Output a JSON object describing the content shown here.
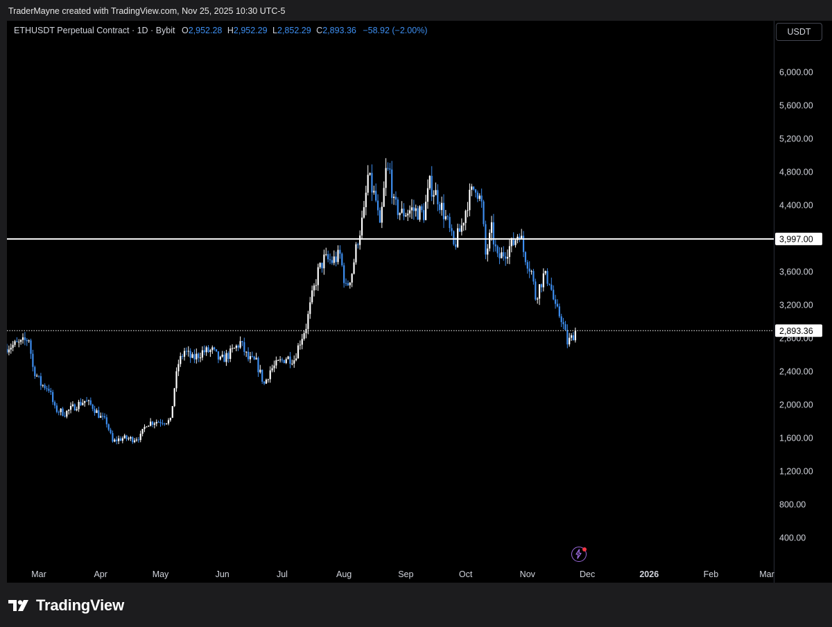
{
  "header": {
    "created_by": "TraderMayne created with TradingView.com, Nov 25, 2025 10:30 UTC-5"
  },
  "legend": {
    "symbol": "ETHUSDT Perpetual Contract · 1D · Bybit",
    "o_label": "O",
    "o_value": "2,952.28",
    "h_label": "H",
    "h_value": "2,952.29",
    "l_label": "L",
    "l_value": "2,852.29",
    "c_label": "C",
    "c_value": "2,893.36",
    "change": "−58.92 (−2.00%)"
  },
  "currency_button": "USDT",
  "brand": {
    "name": "TradingView"
  },
  "colors": {
    "up": "#ffffff",
    "down": "#3d8ef0",
    "background": "#000000",
    "level_line": "#ffffff",
    "legend_values": "#3d8ef0",
    "bolt": "#9c6ade",
    "bolt_dot": "#f23645"
  },
  "chart_data": {
    "type": "candlestick",
    "ylim": [
      0,
      6350
    ],
    "y_ticks": [
      "6,000.00",
      "5,600.00",
      "5,200.00",
      "4,800.00",
      "4,400.00",
      "3,600.00",
      "3,200.00",
      "2,800.00",
      "2,400.00",
      "2,000.00",
      "1,600.00",
      "1,200.00",
      "800.00",
      "400.00"
    ],
    "y_tick_values": [
      6000,
      5600,
      5200,
      4800,
      4400,
      3600,
      3200,
      2800,
      2400,
      2000,
      1600,
      1200,
      800,
      400
    ],
    "x_ticks": [
      "Mar",
      "Apr",
      "May",
      "Jun",
      "Jul",
      "Aug",
      "Sep",
      "Oct",
      "Nov",
      "Dec",
      "2026",
      "Feb",
      "Mar"
    ],
    "x_tick_dates": [
      "2025-03-01",
      "2025-04-01",
      "2025-05-01",
      "2025-06-01",
      "2025-07-01",
      "2025-08-01",
      "2025-09-01",
      "2025-10-01",
      "2025-11-01",
      "2025-12-01",
      "2026-01-01",
      "2026-02-01",
      "2026-03-01"
    ],
    "x_range": [
      "2025-02-13",
      "2026-03-01"
    ],
    "horizontal_levels": [
      {
        "value": 3997,
        "label": "3,997.00",
        "style": "solid"
      },
      {
        "value": 2893.36,
        "label": "2,893.36",
        "style": "dotted"
      }
    ],
    "close_path": [
      [
        "2025-02-13",
        2700
      ],
      [
        "2025-02-20",
        2740
      ],
      [
        "2025-02-24",
        2800
      ],
      [
        "2025-02-26",
        2450
      ],
      [
        "2025-03-02",
        2250
      ],
      [
        "2025-03-06",
        2200
      ],
      [
        "2025-03-09",
        1950
      ],
      [
        "2025-03-14",
        1900
      ],
      [
        "2025-03-20",
        2000
      ],
      [
        "2025-03-24",
        2050
      ],
      [
        "2025-03-28",
        1980
      ],
      [
        "2025-04-01",
        1850
      ],
      [
        "2025-04-04",
        1790
      ],
      [
        "2025-04-07",
        1550
      ],
      [
        "2025-04-09",
        1580
      ],
      [
        "2025-04-12",
        1600
      ],
      [
        "2025-04-17",
        1590
      ],
      [
        "2025-04-21",
        1620
      ],
      [
        "2025-04-24",
        1780
      ],
      [
        "2025-04-28",
        1800
      ],
      [
        "2025-05-03",
        1810
      ],
      [
        "2025-05-06",
        1800
      ],
      [
        "2025-05-08",
        2210
      ],
      [
        "2025-05-10",
        2500
      ],
      [
        "2025-05-13",
        2650
      ],
      [
        "2025-05-17",
        2550
      ],
      [
        "2025-05-22",
        2640
      ],
      [
        "2025-05-27",
        2650
      ],
      [
        "2025-05-31",
        2530
      ],
      [
        "2025-06-05",
        2620
      ],
      [
        "2025-06-10",
        2750
      ],
      [
        "2025-06-14",
        2550
      ],
      [
        "2025-06-18",
        2510
      ],
      [
        "2025-06-22",
        2250
      ],
      [
        "2025-06-25",
        2420
      ],
      [
        "2025-06-29",
        2500
      ],
      [
        "2025-07-03",
        2570
      ],
      [
        "2025-07-07",
        2550
      ],
      [
        "2025-07-10",
        2770
      ],
      [
        "2025-07-13",
        2950
      ],
      [
        "2025-07-16",
        3300
      ],
      [
        "2025-07-19",
        3600
      ],
      [
        "2025-07-22",
        3750
      ],
      [
        "2025-07-26",
        3730
      ],
      [
        "2025-07-30",
        3800
      ],
      [
        "2025-08-02",
        3400
      ],
      [
        "2025-08-05",
        3600
      ],
      [
        "2025-08-08",
        4000
      ],
      [
        "2025-08-11",
        4300
      ],
      [
        "2025-08-13",
        4750
      ],
      [
        "2025-08-17",
        4450
      ],
      [
        "2025-08-19",
        4100
      ],
      [
        "2025-08-22",
        4800
      ],
      [
        "2025-08-24",
        4800
      ],
      [
        "2025-08-26",
        4400
      ],
      [
        "2025-08-30",
        4300
      ],
      [
        "2025-09-04",
        4350
      ],
      [
        "2025-09-10",
        4300
      ],
      [
        "2025-09-13",
        4650
      ],
      [
        "2025-09-17",
        4500
      ],
      [
        "2025-09-22",
        4180
      ],
      [
        "2025-09-25",
        3900
      ],
      [
        "2025-09-29",
        4150
      ],
      [
        "2025-10-02",
        4450
      ],
      [
        "2025-10-06",
        4650
      ],
      [
        "2025-10-09",
        4400
      ],
      [
        "2025-10-11",
        3800
      ],
      [
        "2025-10-14",
        4100
      ],
      [
        "2025-10-17",
        3750
      ],
      [
        "2025-10-21",
        3850
      ],
      [
        "2025-10-25",
        3950
      ],
      [
        "2025-10-28",
        4100
      ],
      [
        "2025-10-30",
        3850
      ],
      [
        "2025-11-03",
        3600
      ],
      [
        "2025-11-05",
        3300
      ],
      [
        "2025-11-09",
        3550
      ],
      [
        "2025-11-12",
        3500
      ],
      [
        "2025-11-15",
        3150
      ],
      [
        "2025-11-18",
        3050
      ],
      [
        "2025-11-21",
        2750
      ],
      [
        "2025-11-23",
        2800
      ],
      [
        "2025-11-25",
        2893
      ]
    ]
  }
}
